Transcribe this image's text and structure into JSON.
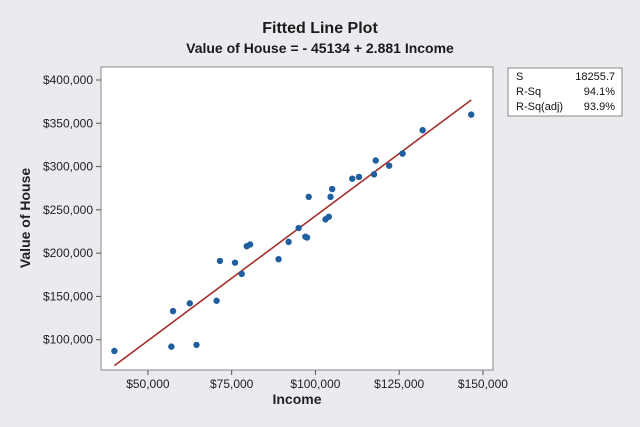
{
  "chart_data": {
    "type": "scatter",
    "title": "Fitted Line Plot",
    "subtitle": "Value of House = - 45134 + 2.881 Income",
    "xlabel": "Income",
    "ylabel": "Value of House",
    "xlim": [
      36000,
      153000
    ],
    "ylim": [
      65000,
      415000
    ],
    "x_ticks": [
      50000,
      75000,
      100000,
      125000,
      150000
    ],
    "x_tick_labels": [
      "$50,000",
      "$75,000",
      "$100,000",
      "$125,000",
      "$150,000"
    ],
    "y_ticks": [
      100000,
      150000,
      200000,
      250000,
      300000,
      350000,
      400000
    ],
    "y_tick_labels": [
      "$100,000",
      "$150,000",
      "$200,000",
      "$250,000",
      "$300,000",
      "$350,000",
      "$400,000"
    ],
    "fit_line": {
      "intercept": -45134,
      "slope": 2.881,
      "x_range": [
        40000,
        146500
      ]
    },
    "points": [
      {
        "x": 40000,
        "y": 87000
      },
      {
        "x": 57000,
        "y": 92000
      },
      {
        "x": 57500,
        "y": 133000
      },
      {
        "x": 62500,
        "y": 142000
      },
      {
        "x": 64500,
        "y": 94000
      },
      {
        "x": 70500,
        "y": 145000
      },
      {
        "x": 71500,
        "y": 191000
      },
      {
        "x": 76000,
        "y": 189000
      },
      {
        "x": 78000,
        "y": 176000
      },
      {
        "x": 79500,
        "y": 208000
      },
      {
        "x": 80500,
        "y": 210000
      },
      {
        "x": 89000,
        "y": 193000
      },
      {
        "x": 92000,
        "y": 213000
      },
      {
        "x": 95000,
        "y": 229000
      },
      {
        "x": 97000,
        "y": 219000
      },
      {
        "x": 97500,
        "y": 218000
      },
      {
        "x": 98000,
        "y": 265000
      },
      {
        "x": 103000,
        "y": 239000
      },
      {
        "x": 104000,
        "y": 242000
      },
      {
        "x": 104500,
        "y": 265000
      },
      {
        "x": 105000,
        "y": 274000
      },
      {
        "x": 111000,
        "y": 286000
      },
      {
        "x": 113000,
        "y": 288000
      },
      {
        "x": 117500,
        "y": 291000
      },
      {
        "x": 118000,
        "y": 307000
      },
      {
        "x": 122000,
        "y": 301000
      },
      {
        "x": 126000,
        "y": 315000
      },
      {
        "x": 132000,
        "y": 342000
      },
      {
        "x": 146500,
        "y": 360000
      }
    ],
    "colors": {
      "points": "#1f5fa0",
      "line": "#a3302a",
      "plot_bg": "#ffffff",
      "page_bg": "#e9ebef"
    }
  },
  "stats": [
    {
      "label": "S",
      "value": "18255.7"
    },
    {
      "label": "R-Sq",
      "value": "94.1%"
    },
    {
      "label": "R-Sq(adj)",
      "value": "93.9%"
    }
  ]
}
